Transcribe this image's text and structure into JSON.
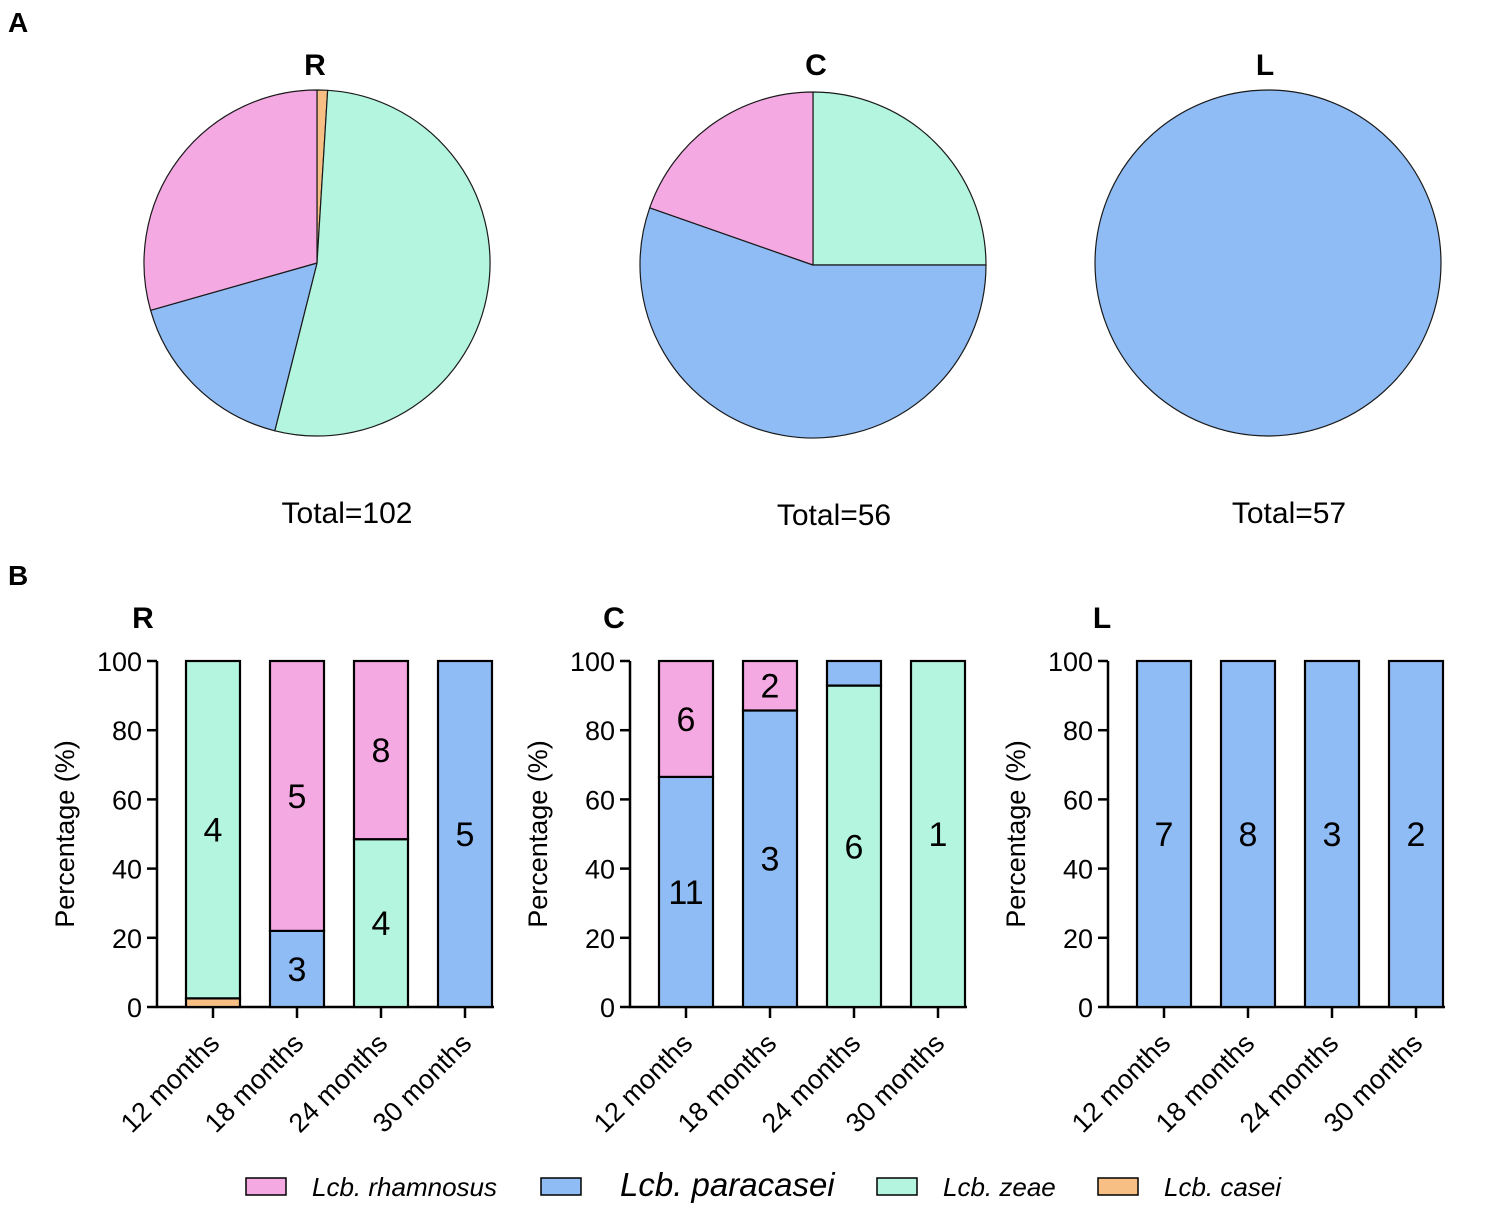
{
  "colors": {
    "Lcb. rhamnosus": "#f5a9e3",
    "Lcb. paracasei": "#8fbcf5",
    "Lcb. zeae": "#b3f5de",
    "Lcb. casei": "#f7bf84",
    "stroke": "#1a1a1a"
  },
  "chart_data": [
    {
      "type": "pie",
      "panel": "A",
      "title": "R",
      "total_label": "Total=102",
      "slices": [
        {
          "name": "Lcb. casei",
          "value": 1
        },
        {
          "name": "Lcb. zeae",
          "value": 54
        },
        {
          "name": "Lcb. paracasei",
          "value": 17
        },
        {
          "name": "Lcb. rhamnosus",
          "value": 30
        }
      ]
    },
    {
      "type": "pie",
      "panel": "A",
      "title": "C",
      "total_label": "Total=56",
      "slices": [
        {
          "name": "Lcb. zeae",
          "value": 14
        },
        {
          "name": "Lcb. paracasei",
          "value": 31
        },
        {
          "name": "Lcb. rhamnosus",
          "value": 11
        }
      ]
    },
    {
      "type": "pie",
      "panel": "A",
      "title": "L",
      "total_label": "Total=57",
      "slices": [
        {
          "name": "Lcb. paracasei",
          "value": 57
        }
      ]
    },
    {
      "type": "bar",
      "stacked": true,
      "panel": "B",
      "title": "R",
      "ylabel": "Percentage (%)",
      "ylim": [
        0,
        100
      ],
      "yticks": [
        "0",
        "20",
        "40",
        "60",
        "80",
        "100"
      ],
      "categories": [
        "12 months",
        "18 months",
        "24 months",
        "30 months"
      ],
      "bars": [
        {
          "segments": [
            {
              "name": "Lcb. casei",
              "value": 2.5,
              "label": ""
            },
            {
              "name": "Lcb. zeae",
              "value": 97.5,
              "label": "4"
            }
          ]
        },
        {
          "segments": [
            {
              "name": "Lcb. paracasei",
              "value": 22,
              "label": "3"
            },
            {
              "name": "Lcb. rhamnosus",
              "value": 78,
              "label": "5"
            }
          ]
        },
        {
          "segments": [
            {
              "name": "Lcb. zeae",
              "value": 48.5,
              "label": "4"
            },
            {
              "name": "Lcb. rhamnosus",
              "value": 51.5,
              "label": "8"
            }
          ]
        },
        {
          "segments": [
            {
              "name": "Lcb. paracasei",
              "value": 100,
              "label": "5"
            }
          ]
        }
      ]
    },
    {
      "type": "bar",
      "stacked": true,
      "panel": "B",
      "title": "C",
      "ylabel": "Percentage (%)",
      "ylim": [
        0,
        100
      ],
      "yticks": [
        "0",
        "20",
        "40",
        "60",
        "80",
        "100"
      ],
      "categories": [
        "12 months",
        "18 months",
        "24 months",
        "30 months"
      ],
      "bars": [
        {
          "segments": [
            {
              "name": "Lcb. paracasei",
              "value": 66.5,
              "label": "11"
            },
            {
              "name": "Lcb. rhamnosus",
              "value": 33.5,
              "label": "6"
            }
          ]
        },
        {
          "segments": [
            {
              "name": "Lcb. paracasei",
              "value": 85.7,
              "label": "3"
            },
            {
              "name": "Lcb. rhamnosus",
              "value": 14.3,
              "label": "2"
            }
          ]
        },
        {
          "segments": [
            {
              "name": "Lcb. zeae",
              "value": 92.9,
              "label": "6"
            },
            {
              "name": "Lcb. paracasei",
              "value": 7.1,
              "label": ""
            }
          ]
        },
        {
          "segments": [
            {
              "name": "Lcb. zeae",
              "value": 100,
              "label": "1"
            }
          ]
        }
      ]
    },
    {
      "type": "bar",
      "stacked": true,
      "panel": "B",
      "title": "L",
      "ylabel": "Percentage (%)",
      "ylim": [
        0,
        100
      ],
      "yticks": [
        "0",
        "20",
        "40",
        "60",
        "80",
        "100"
      ],
      "categories": [
        "12 months",
        "18 months",
        "24 months",
        "30 months"
      ],
      "bars": [
        {
          "segments": [
            {
              "name": "Lcb. paracasei",
              "value": 100,
              "label": "7"
            }
          ]
        },
        {
          "segments": [
            {
              "name": "Lcb. paracasei",
              "value": 100,
              "label": "8"
            }
          ]
        },
        {
          "segments": [
            {
              "name": "Lcb. paracasei",
              "value": 100,
              "label": "3"
            }
          ]
        },
        {
          "segments": [
            {
              "name": "Lcb. paracasei",
              "value": 100,
              "label": "2"
            }
          ]
        }
      ]
    }
  ],
  "panel_labels": {
    "a": "A",
    "b": "B"
  },
  "legend": [
    {
      "name": "Lcb. rhamnosus",
      "label": "Lcb. rhamnosus"
    },
    {
      "name": "Lcb. paracasei",
      "label": "Lcb. paracasei"
    },
    {
      "name": "Lcb. zeae",
      "label": "Lcb. zeae"
    },
    {
      "name": "Lcb. casei",
      "label": "Lcb. casei"
    }
  ]
}
